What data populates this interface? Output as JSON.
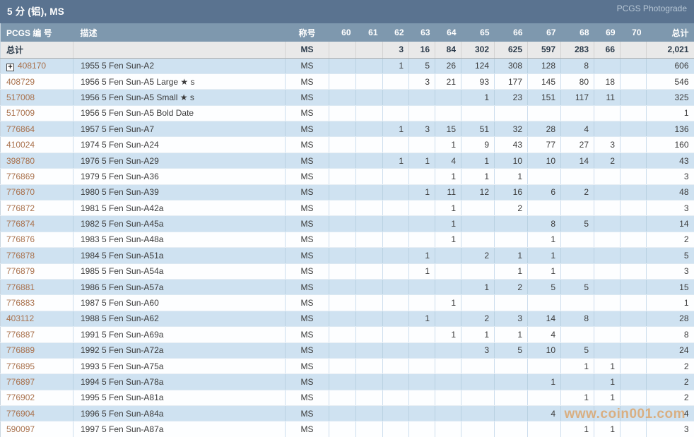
{
  "title_bar": {
    "title": "5 分 (铝), MS",
    "photograde_link": "PCGS Photograde"
  },
  "icons": {
    "expand": "+"
  },
  "table": {
    "columns": [
      "PCGS 编 号",
      "描述",
      "称号",
      "60",
      "61",
      "62",
      "63",
      "64",
      "65",
      "66",
      "67",
      "68",
      "69",
      "70",
      "总计"
    ],
    "totals": {
      "label": "总计",
      "designation": "MS",
      "grades": [
        "",
        "",
        "3",
        "16",
        "84",
        "302",
        "625",
        "597",
        "283",
        "66",
        ""
      ],
      "total": "2,021"
    },
    "rows": [
      {
        "pcgs": "408170",
        "expandable": true,
        "desc": "1955 5 Fen Sun-A2",
        "designation": "MS",
        "grades": [
          "",
          "",
          "1",
          "5",
          "26",
          "124",
          "308",
          "128",
          "8",
          "",
          ""
        ],
        "total": "606"
      },
      {
        "pcgs": "408729",
        "expandable": false,
        "desc": "1956 5 Fen Sun-A5 Large ★ s",
        "designation": "MS",
        "grades": [
          "",
          "",
          "",
          "3",
          "21",
          "93",
          "177",
          "145",
          "80",
          "18",
          ""
        ],
        "total": "546"
      },
      {
        "pcgs": "517008",
        "expandable": false,
        "desc": "1956 5 Fen Sun-A5 Small ★ s",
        "designation": "MS",
        "grades": [
          "",
          "",
          "",
          "",
          "",
          "1",
          "23",
          "151",
          "117",
          "11",
          ""
        ],
        "total": "325"
      },
      {
        "pcgs": "517009",
        "expandable": false,
        "desc": "1956 5 Fen Sun-A5 Bold Date",
        "designation": "MS",
        "grades": [
          "",
          "",
          "",
          "",
          "",
          "",
          "",
          "",
          "",
          "",
          ""
        ],
        "total": "1"
      },
      {
        "pcgs": "776864",
        "expandable": false,
        "desc": "1957 5 Fen Sun-A7",
        "designation": "MS",
        "grades": [
          "",
          "",
          "1",
          "3",
          "15",
          "51",
          "32",
          "28",
          "4",
          "",
          ""
        ],
        "total": "136"
      },
      {
        "pcgs": "410024",
        "expandable": false,
        "desc": "1974 5 Fen Sun-A24",
        "designation": "MS",
        "grades": [
          "",
          "",
          "",
          "",
          "1",
          "9",
          "43",
          "77",
          "27",
          "3",
          ""
        ],
        "total": "160"
      },
      {
        "pcgs": "398780",
        "expandable": false,
        "desc": "1976 5 Fen Sun-A29",
        "designation": "MS",
        "grades": [
          "",
          "",
          "1",
          "1",
          "4",
          "1",
          "10",
          "10",
          "14",
          "2",
          ""
        ],
        "total": "43"
      },
      {
        "pcgs": "776869",
        "expandable": false,
        "desc": "1979 5 Fen Sun-A36",
        "designation": "MS",
        "grades": [
          "",
          "",
          "",
          "",
          "1",
          "1",
          "1",
          "",
          "",
          "",
          ""
        ],
        "total": "3"
      },
      {
        "pcgs": "776870",
        "expandable": false,
        "desc": "1980 5 Fen Sun-A39",
        "designation": "MS",
        "grades": [
          "",
          "",
          "",
          "1",
          "11",
          "12",
          "16",
          "6",
          "2",
          "",
          ""
        ],
        "total": "48"
      },
      {
        "pcgs": "776872",
        "expandable": false,
        "desc": "1981 5 Fen Sun-A42a",
        "designation": "MS",
        "grades": [
          "",
          "",
          "",
          "",
          "1",
          "",
          "2",
          "",
          "",
          "",
          ""
        ],
        "total": "3"
      },
      {
        "pcgs": "776874",
        "expandable": false,
        "desc": "1982 5 Fen Sun-A45a",
        "designation": "MS",
        "grades": [
          "",
          "",
          "",
          "",
          "1",
          "",
          "",
          "8",
          "5",
          "",
          ""
        ],
        "total": "14"
      },
      {
        "pcgs": "776876",
        "expandable": false,
        "desc": "1983 5 Fen Sun-A48a",
        "designation": "MS",
        "grades": [
          "",
          "",
          "",
          "",
          "1",
          "",
          "",
          "1",
          "",
          "",
          ""
        ],
        "total": "2"
      },
      {
        "pcgs": "776878",
        "expandable": false,
        "desc": "1984 5 Fen Sun-A51a",
        "designation": "MS",
        "grades": [
          "",
          "",
          "",
          "1",
          "",
          "2",
          "1",
          "1",
          "",
          "",
          ""
        ],
        "total": "5"
      },
      {
        "pcgs": "776879",
        "expandable": false,
        "desc": "1985 5 Fen Sun-A54a",
        "designation": "MS",
        "grades": [
          "",
          "",
          "",
          "1",
          "",
          "",
          "1",
          "1",
          "",
          "",
          ""
        ],
        "total": "3"
      },
      {
        "pcgs": "776881",
        "expandable": false,
        "desc": "1986 5 Fen Sun-A57a",
        "designation": "MS",
        "grades": [
          "",
          "",
          "",
          "",
          "",
          "1",
          "2",
          "5",
          "5",
          "",
          ""
        ],
        "total": "15"
      },
      {
        "pcgs": "776883",
        "expandable": false,
        "desc": "1987 5 Fen Sun-A60",
        "designation": "MS",
        "grades": [
          "",
          "",
          "",
          "",
          "1",
          "",
          "",
          "",
          "",
          "",
          ""
        ],
        "total": "1"
      },
      {
        "pcgs": "403112",
        "expandable": false,
        "desc": "1988 5 Fen Sun-A62",
        "designation": "MS",
        "grades": [
          "",
          "",
          "",
          "1",
          "",
          "2",
          "3",
          "14",
          "8",
          "",
          ""
        ],
        "total": "28"
      },
      {
        "pcgs": "776887",
        "expandable": false,
        "desc": "1991 5 Fen Sun-A69a",
        "designation": "MS",
        "grades": [
          "",
          "",
          "",
          "",
          "1",
          "1",
          "1",
          "4",
          "",
          "",
          ""
        ],
        "total": "8"
      },
      {
        "pcgs": "776889",
        "expandable": false,
        "desc": "1992 5 Fen Sun-A72a",
        "designation": "MS",
        "grades": [
          "",
          "",
          "",
          "",
          "",
          "3",
          "5",
          "10",
          "5",
          "",
          ""
        ],
        "total": "24"
      },
      {
        "pcgs": "776895",
        "expandable": false,
        "desc": "1993 5 Fen Sun-A75a",
        "designation": "MS",
        "grades": [
          "",
          "",
          "",
          "",
          "",
          "",
          "",
          "",
          "1",
          "1",
          ""
        ],
        "total": "2"
      },
      {
        "pcgs": "776897",
        "expandable": false,
        "desc": "1994 5 Fen Sun-A78a",
        "designation": "MS",
        "grades": [
          "",
          "",
          "",
          "",
          "",
          "",
          "",
          "1",
          "",
          "1",
          ""
        ],
        "total": "2"
      },
      {
        "pcgs": "776902",
        "expandable": false,
        "desc": "1995 5 Fen Sun-A81a",
        "designation": "MS",
        "grades": [
          "",
          "",
          "",
          "",
          "",
          "",
          "",
          "",
          "1",
          "1",
          ""
        ],
        "total": "2"
      },
      {
        "pcgs": "776904",
        "expandable": false,
        "desc": "1996 5 Fen Sun-A84a",
        "designation": "MS",
        "grades": [
          "",
          "",
          "",
          "",
          "",
          "",
          "",
          "4",
          "",
          "",
          ""
        ],
        "total": "4"
      },
      {
        "pcgs": "590097",
        "expandable": false,
        "desc": "1997 5 Fen Sun-A87a",
        "designation": "MS",
        "grades": [
          "",
          "",
          "",
          "",
          "",
          "",
          "",
          "",
          "1",
          "1",
          ""
        ],
        "total": "3"
      }
    ]
  },
  "watermark": {
    "text": "www.coin001.com"
  },
  "colors": {
    "title_bar_bg": "#5a7390",
    "column_header_bg": "#7e98ae",
    "row_alt_blue": "#cfe2f1",
    "totals_row_bg": "#e9e9e9",
    "pcgs_link": "#a9714c",
    "watermark": "#e0913f"
  }
}
